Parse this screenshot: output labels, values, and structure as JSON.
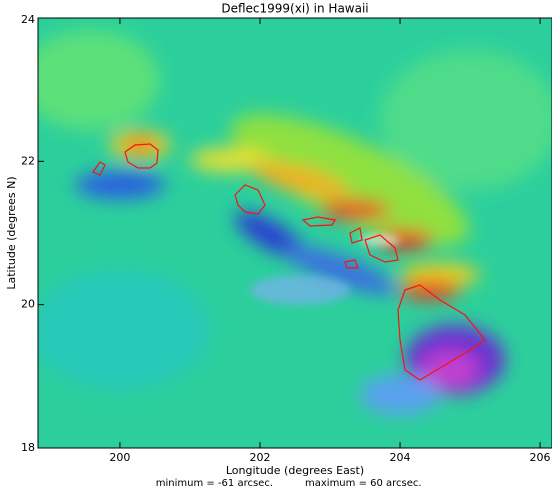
{
  "map": {
    "title": "Deflec1999(xi)  in  Hawaii",
    "xlabel": "Longitude (degrees East)",
    "ylabel": "Latitude (degrees N)",
    "xlim": [
      198.83,
      206.17
    ],
    "ylim": [
      18,
      24
    ],
    "xticks": [
      200,
      202,
      204,
      206
    ],
    "yticks": [
      18,
      20,
      22,
      24
    ],
    "minimum": "minimum = -61 arcsec.",
    "maximum": "maximum = 60 arcsec."
  }
}
